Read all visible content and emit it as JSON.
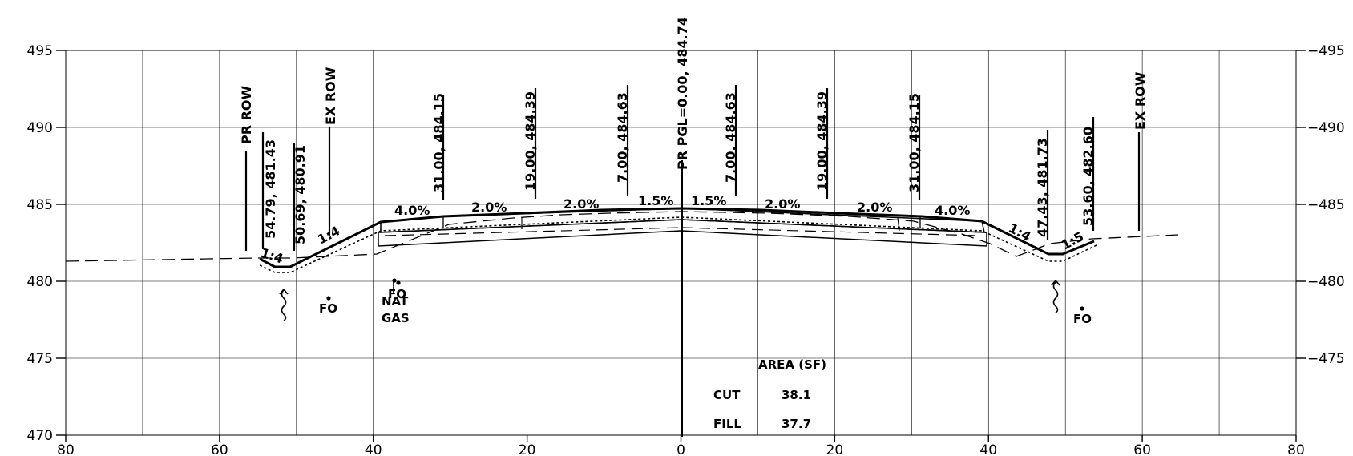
{
  "axes": {
    "x_range": [
      -80,
      80
    ],
    "y_range": [
      470,
      495
    ],
    "x_ticks": [
      80,
      60,
      40,
      20,
      0,
      20,
      40,
      60,
      80
    ],
    "x_tick_positions": [
      -80,
      -60,
      -40,
      -20,
      0,
      20,
      40,
      60,
      80
    ],
    "y_ticks": [
      495,
      490,
      485,
      480,
      475,
      470
    ],
    "right_y_ticks": [
      495,
      490,
      485,
      480,
      475
    ],
    "grid": "on"
  },
  "labels": {
    "pr_row_left": "PR ROW",
    "ex_row_left": "EX ROW",
    "ex_row_right": "EX ROW",
    "pgl": "PR PGL=0.00, 484.74",
    "off_54_79": "54.79, 481.43",
    "off_50_69": "50.69, 480.91",
    "off_31_left": "31.00, 484.15",
    "off_19_left": "19.00, 484.39",
    "off_7_left": "7.00, 484.63",
    "off_7_right": "7.00, 484.63",
    "off_19_right": "19.00, 484.39",
    "off_31_right": "31.00, 484.15",
    "off_47_43": "47.43, 481.73",
    "off_53_60": "53.60, 482.60"
  },
  "slopes": {
    "s1": "4.0%",
    "s2": "2.0%",
    "s3": "2.0%",
    "s4": "1.5%",
    "s5": "1.5%",
    "s6": "2.0%",
    "s7": "2.0%",
    "s8": "4.0%",
    "ratio_l1": "1:4",
    "ratio_l2": "1:4",
    "ratio_r1": "1:4",
    "ratio_r2": "1:5"
  },
  "utilities": {
    "fo_left": "FO",
    "fo_nat": "FO",
    "nat": "NAT",
    "gas": "GAS",
    "fo_right": "FO"
  },
  "area_table": {
    "title": "AREA (SF)",
    "cut_label": "CUT",
    "cut_value": "38.1",
    "fill_label": "FILL",
    "fill_value": "37.7"
  },
  "colors": {
    "line": "#000000",
    "grid": "#000000"
  }
}
